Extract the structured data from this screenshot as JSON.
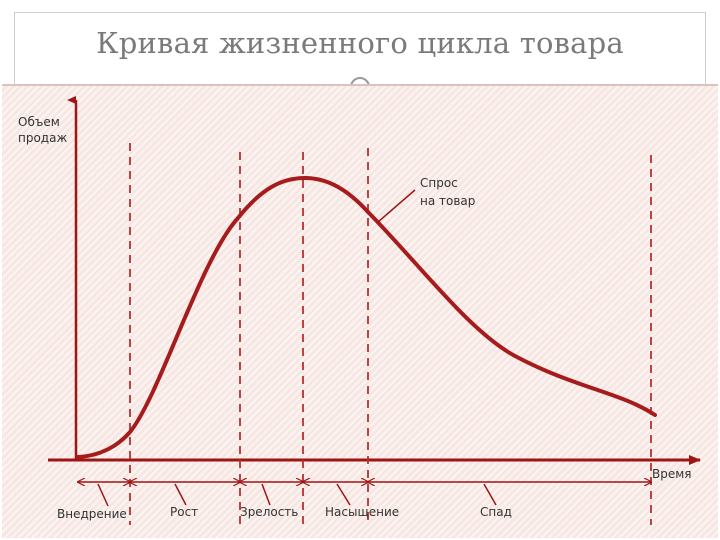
{
  "title": "Кривая жизненного цикла товара",
  "diagram": {
    "y_axis_label": [
      "Объем",
      "продаж"
    ],
    "x_axis_label": "Время",
    "curve_label": [
      "Спрос",
      "на товар"
    ],
    "stages": [
      "Внедрение",
      "Рост",
      "Зрелость",
      "Насыщение",
      "Спад"
    ],
    "colors": {
      "curve": "#a61c1c",
      "axes": "#9e1515",
      "background": "#f6e7e3",
      "title": "#7a7a7a"
    }
  }
}
